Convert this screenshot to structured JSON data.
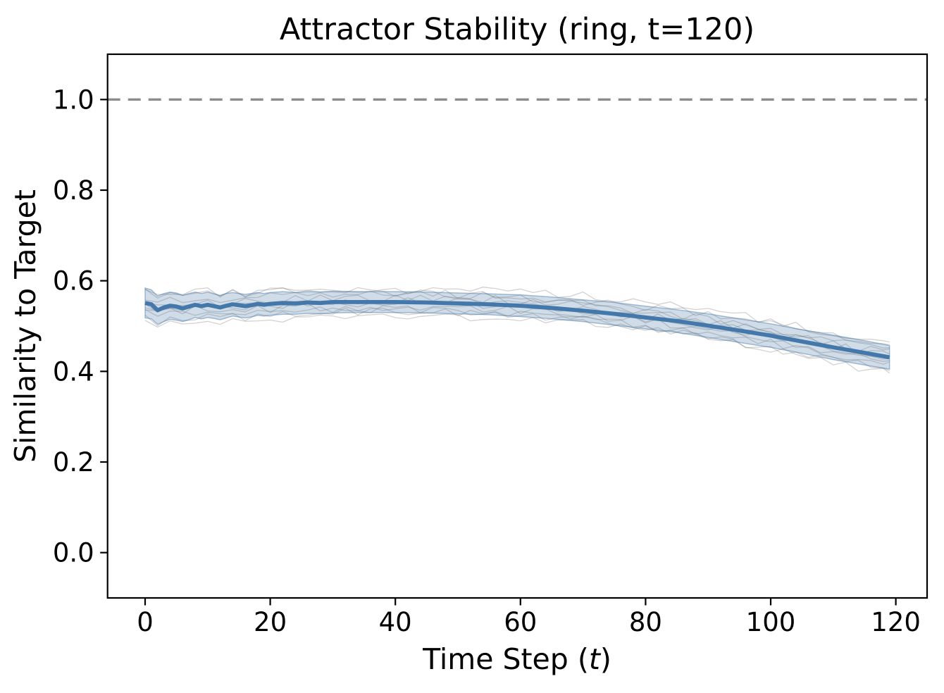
{
  "chart_data": {
    "type": "line",
    "title": "Attractor Stability (ring, t=120)",
    "xlabel_prefix": "Time Step (",
    "xlabel_italic": "t",
    "xlabel_suffix": ")",
    "ylabel": "Similarity to Target",
    "xlim": [
      -6,
      125
    ],
    "ylim": [
      -0.1,
      1.1
    ],
    "grid": false,
    "legend": "none",
    "xticks": [
      {
        "v": 0,
        "label": "0"
      },
      {
        "v": 20,
        "label": "20"
      },
      {
        "v": 40,
        "label": "40"
      },
      {
        "v": 60,
        "label": "60"
      },
      {
        "v": 80,
        "label": "80"
      },
      {
        "v": 100,
        "label": "100"
      },
      {
        "v": 120,
        "label": "120"
      }
    ],
    "yticks": [
      {
        "v": 0.0,
        "label": "0.0"
      },
      {
        "v": 0.2,
        "label": "0.2"
      },
      {
        "v": 0.4,
        "label": "0.4"
      },
      {
        "v": 0.6,
        "label": "0.6"
      },
      {
        "v": 0.8,
        "label": "0.8"
      },
      {
        "v": 1.0,
        "label": "1.0"
      }
    ],
    "target_line": {
      "y": 1.0,
      "color": "#8c8c8c",
      "dash": [
        18,
        11
      ],
      "width": 3.4
    },
    "mean_series": {
      "name": "mean-similarity",
      "color": "#4478aa",
      "width": 5.8,
      "x": [
        0,
        1,
        2,
        3,
        4,
        5,
        6,
        7,
        8,
        9,
        10,
        11,
        12,
        13,
        14,
        15,
        16,
        17,
        18,
        19,
        20,
        22,
        24,
        26,
        28,
        30,
        35,
        40,
        45,
        50,
        55,
        60,
        65,
        70,
        75,
        80,
        85,
        90,
        95,
        100,
        105,
        110,
        115,
        119
      ],
      "y": [
        0.551,
        0.548,
        0.535,
        0.541,
        0.545,
        0.543,
        0.539,
        0.543,
        0.547,
        0.544,
        0.547,
        0.544,
        0.541,
        0.545,
        0.548,
        0.546,
        0.544,
        0.546,
        0.549,
        0.547,
        0.549,
        0.551,
        0.55,
        0.552,
        0.551,
        0.553,
        0.553,
        0.553,
        0.552,
        0.55,
        0.548,
        0.545,
        0.54,
        0.534,
        0.527,
        0.519,
        0.511,
        0.501,
        0.49,
        0.479,
        0.466,
        0.453,
        0.441,
        0.431
      ]
    },
    "band": {
      "name": "std-band",
      "fill": "rgba(68,118,168,0.25)",
      "edge": "rgba(68,118,168,0.45)",
      "halfwidth": [
        0.033,
        0.032,
        0.031,
        0.031,
        0.03,
        0.03,
        0.029,
        0.029,
        0.028,
        0.028,
        0.028,
        0.027,
        0.027,
        0.027,
        0.026,
        0.026,
        0.026,
        0.026,
        0.025,
        0.025,
        0.025,
        0.025,
        0.024,
        0.024,
        0.024,
        0.024,
        0.023,
        0.023,
        0.023,
        0.023,
        0.023,
        0.024,
        0.024,
        0.024,
        0.025,
        0.025,
        0.025,
        0.026,
        0.026,
        0.026,
        0.026,
        0.027,
        0.027,
        0.026
      ]
    },
    "trials": {
      "name": "individual-trials",
      "count": 10,
      "spread": 0.03,
      "noise": 0.009,
      "color": "rgba(105,105,105,0.30)",
      "width": 1.3,
      "seed": 11
    },
    "colors": {
      "spine": "#000000",
      "background": "#ffffff"
    }
  }
}
